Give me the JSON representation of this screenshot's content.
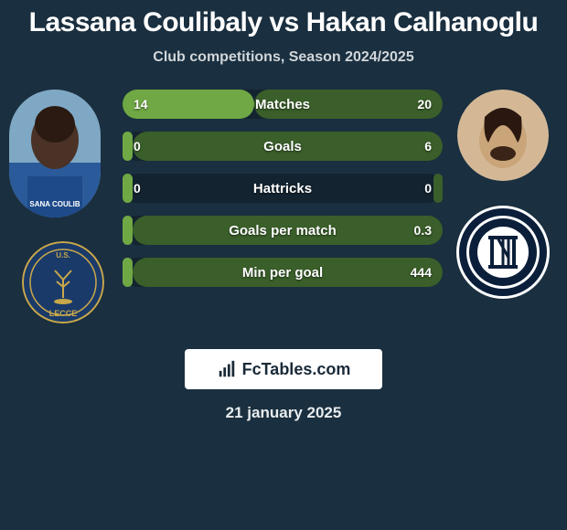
{
  "title": "Lassana Coulibaly vs Hakan Calhanoglu",
  "subtitle": "Club competitions, Season 2024/2025",
  "date": "21 january 2025",
  "footer_brand": "FcTables.com",
  "colors": {
    "bg": "#1a2f3f",
    "bar_bg": "#13232f",
    "fill_left": "#6fa845",
    "fill_right": "#3a5f2a",
    "text": "#ffffff"
  },
  "player_left": {
    "name": "Lassana Coulibaly"
  },
  "player_right": {
    "name": "Hakan Calhanoglu"
  },
  "club_left": {
    "name": "US Lecce"
  },
  "club_right": {
    "name": "Inter"
  },
  "stats": [
    {
      "label": "Matches",
      "left_value": "14",
      "right_value": "20",
      "left_pct": 41,
      "right_pct": 59
    },
    {
      "label": "Goals",
      "left_value": "0",
      "right_value": "6",
      "left_pct": 3,
      "right_pct": 97
    },
    {
      "label": "Hattricks",
      "left_value": "0",
      "right_value": "0",
      "left_pct": 3,
      "right_pct": 3
    },
    {
      "label": "Goals per match",
      "left_value": "",
      "right_value": "0.3",
      "left_pct": 3,
      "right_pct": 97
    },
    {
      "label": "Min per goal",
      "left_value": "",
      "right_value": "444",
      "left_pct": 3,
      "right_pct": 97
    }
  ]
}
